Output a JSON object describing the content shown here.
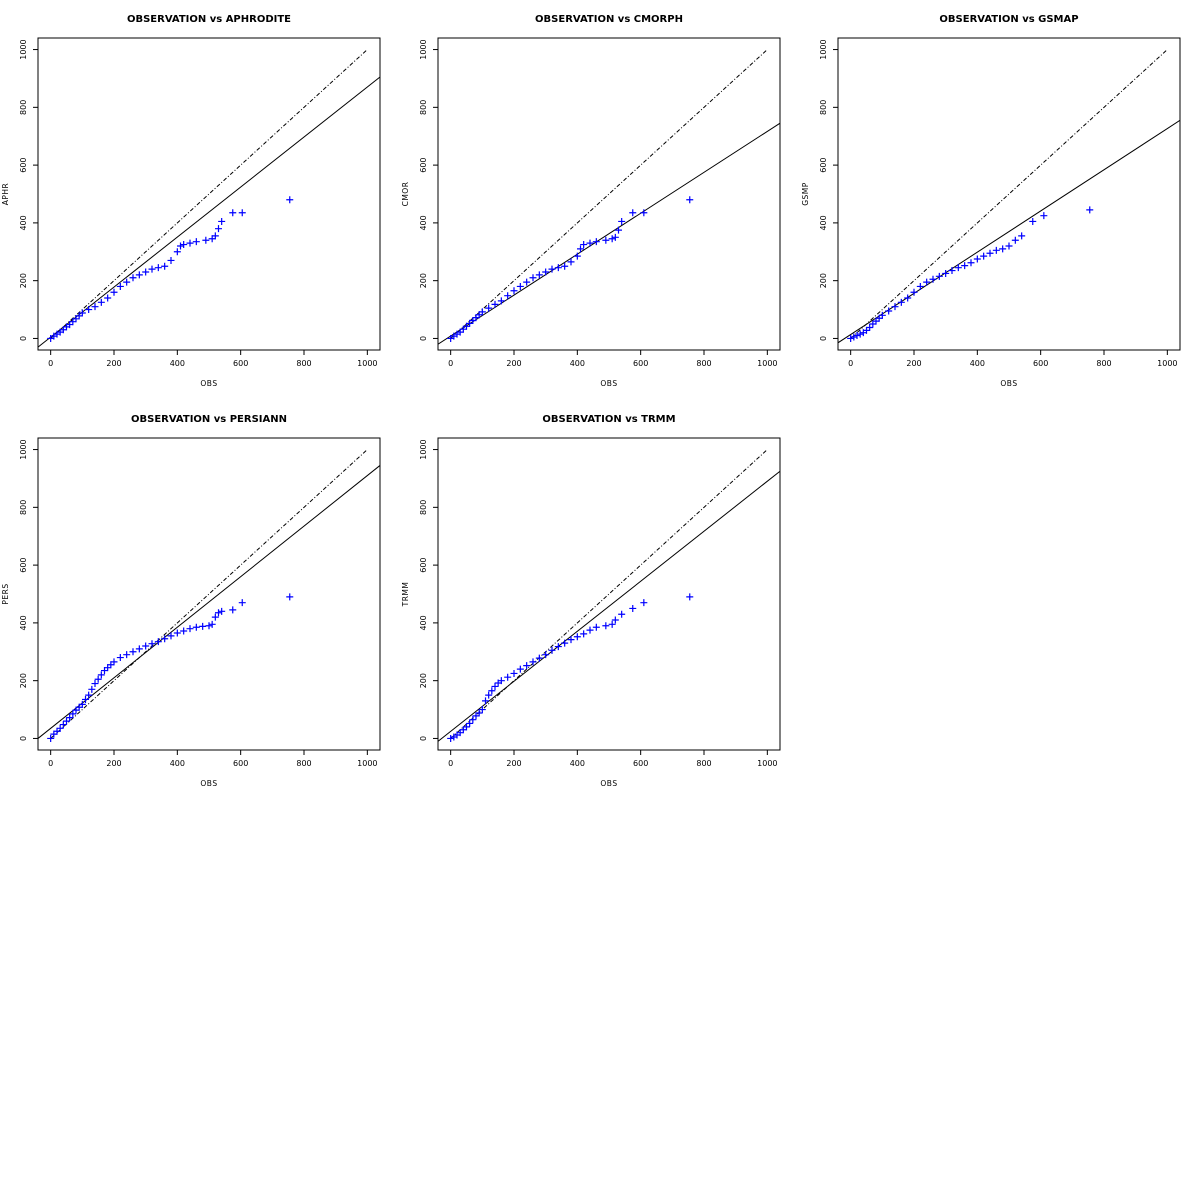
{
  "figure": {
    "colors": {
      "points": "#0000ff",
      "lines": "#000000",
      "background": "#ffffff"
    },
    "point_marker": "plus"
  },
  "chart_data": [
    {
      "type": "scatter",
      "title": "OBSERVATION vs APHRODITE",
      "xlabel": "OBS",
      "ylabel": "APHR",
      "xlim": [
        -40,
        1040
      ],
      "ylim": [
        -40,
        1040
      ],
      "xticks": [
        "0",
        "200",
        "400",
        "600",
        "800",
        "1000"
      ],
      "yticks": [
        "0",
        "200",
        "400",
        "600",
        "800",
        "1000"
      ],
      "grid": false,
      "reference_line": {
        "style": "dashed",
        "from": [
          0,
          0
        ],
        "to": [
          1000,
          1000
        ]
      },
      "fit_line": {
        "style": "solid",
        "from": [
          -40,
          -30
        ],
        "to": [
          1040,
          905
        ]
      },
      "x": [
        0,
        10,
        20,
        30,
        40,
        50,
        60,
        70,
        80,
        90,
        100,
        120,
        140,
        160,
        180,
        200,
        220,
        240,
        260,
        280,
        300,
        320,
        340,
        360,
        380,
        400,
        410,
        420,
        440,
        460,
        490,
        510,
        520,
        530,
        540,
        575,
        605,
        755
      ],
      "y": [
        0,
        8,
        15,
        22,
        30,
        40,
        48,
        58,
        68,
        78,
        88,
        100,
        110,
        125,
        140,
        160,
        180,
        195,
        210,
        220,
        230,
        240,
        245,
        250,
        270,
        300,
        320,
        325,
        330,
        335,
        340,
        345,
        355,
        380,
        405,
        435,
        435,
        480
      ]
    },
    {
      "type": "scatter",
      "title": "OBSERVATION vs CMORPH",
      "xlabel": "OBS",
      "ylabel": "CMOR",
      "xlim": [
        -40,
        1040
      ],
      "ylim": [
        -40,
        1040
      ],
      "xticks": [
        "0",
        "200",
        "400",
        "600",
        "800",
        "1000"
      ],
      "yticks": [
        "0",
        "200",
        "400",
        "600",
        "800",
        "1000"
      ],
      "grid": false,
      "reference_line": {
        "style": "dashed",
        "from": [
          0,
          0
        ],
        "to": [
          1000,
          1000
        ]
      },
      "fit_line": {
        "style": "solid",
        "from": [
          -40,
          -20
        ],
        "to": [
          1040,
          745
        ]
      },
      "x": [
        0,
        10,
        20,
        30,
        40,
        50,
        60,
        70,
        80,
        90,
        100,
        120,
        140,
        160,
        180,
        200,
        220,
        240,
        260,
        280,
        300,
        320,
        340,
        360,
        380,
        400,
        410,
        420,
        440,
        460,
        490,
        510,
        520,
        530,
        540,
        575,
        610,
        755
      ],
      "y": [
        0,
        8,
        15,
        22,
        32,
        42,
        52,
        62,
        72,
        82,
        92,
        105,
        118,
        130,
        148,
        165,
        180,
        195,
        210,
        220,
        230,
        240,
        245,
        250,
        265,
        285,
        310,
        325,
        330,
        335,
        340,
        345,
        350,
        375,
        405,
        435,
        435,
        480
      ]
    },
    {
      "type": "scatter",
      "title": "OBSERVATION vs GSMAP",
      "xlabel": "OBS",
      "ylabel": "GSMP",
      "xlim": [
        -40,
        1040
      ],
      "ylim": [
        -40,
        1040
      ],
      "xticks": [
        "0",
        "200",
        "400",
        "600",
        "800",
        "1000"
      ],
      "yticks": [
        "0",
        "200",
        "400",
        "600",
        "800",
        "1000"
      ],
      "grid": false,
      "reference_line": {
        "style": "dashed",
        "from": [
          0,
          0
        ],
        "to": [
          1000,
          1000
        ]
      },
      "fit_line": {
        "style": "solid",
        "from": [
          -40,
          -15
        ],
        "to": [
          1040,
          755
        ]
      },
      "x": [
        0,
        10,
        20,
        30,
        40,
        50,
        60,
        70,
        80,
        90,
        100,
        120,
        140,
        160,
        180,
        200,
        220,
        240,
        260,
        280,
        300,
        320,
        340,
        360,
        380,
        400,
        420,
        440,
        460,
        480,
        500,
        520,
        540,
        575,
        610,
        755
      ],
      "y": [
        0,
        5,
        10,
        15,
        20,
        28,
        38,
        50,
        60,
        70,
        80,
        95,
        110,
        125,
        140,
        160,
        180,
        195,
        205,
        215,
        225,
        235,
        245,
        252,
        262,
        275,
        285,
        295,
        305,
        310,
        320,
        340,
        355,
        405,
        425,
        445
      ]
    },
    {
      "type": "scatter",
      "title": "OBSERVATION vs PERSIANN",
      "xlabel": "OBS",
      "ylabel": "PERS",
      "xlim": [
        -40,
        1040
      ],
      "ylim": [
        -40,
        1040
      ],
      "xticks": [
        "0",
        "200",
        "400",
        "600",
        "800",
        "1000"
      ],
      "yticks": [
        "0",
        "200",
        "400",
        "600",
        "800",
        "1000"
      ],
      "grid": false,
      "reference_line": {
        "style": "dashed",
        "from": [
          0,
          0
        ],
        "to": [
          1000,
          1000
        ]
      },
      "fit_line": {
        "style": "solid",
        "from": [
          -40,
          0
        ],
        "to": [
          1040,
          945
        ]
      },
      "x": [
        0,
        10,
        20,
        30,
        40,
        50,
        60,
        70,
        80,
        90,
        100,
        110,
        120,
        130,
        140,
        150,
        160,
        170,
        180,
        190,
        200,
        220,
        240,
        260,
        280,
        300,
        320,
        340,
        360,
        380,
        400,
        420,
        440,
        460,
        480,
        500,
        510,
        520,
        530,
        540,
        575,
        605,
        755
      ],
      "y": [
        0,
        15,
        25,
        35,
        48,
        60,
        72,
        85,
        98,
        108,
        118,
        135,
        150,
        170,
        190,
        205,
        220,
        235,
        245,
        255,
        265,
        280,
        290,
        300,
        310,
        320,
        328,
        335,
        345,
        355,
        365,
        372,
        380,
        385,
        388,
        390,
        395,
        420,
        435,
        440,
        445,
        470,
        490
      ]
    },
    {
      "type": "scatter",
      "title": "OBSERVATION vs TRMM",
      "xlabel": "OBS",
      "ylabel": "TRMM",
      "xlim": [
        -40,
        1040
      ],
      "ylim": [
        -40,
        1040
      ],
      "xticks": [
        "0",
        "200",
        "400",
        "600",
        "800",
        "1000"
      ],
      "yticks": [
        "0",
        "200",
        "400",
        "600",
        "800",
        "1000"
      ],
      "grid": false,
      "reference_line": {
        "style": "dashed",
        "from": [
          0,
          0
        ],
        "to": [
          1000,
          1000
        ]
      },
      "fit_line": {
        "style": "solid",
        "from": [
          -40,
          -10
        ],
        "to": [
          1040,
          925
        ]
      },
      "x": [
        0,
        10,
        20,
        30,
        40,
        50,
        60,
        70,
        80,
        90,
        100,
        110,
        120,
        130,
        140,
        150,
        160,
        180,
        200,
        220,
        240,
        260,
        280,
        300,
        320,
        340,
        360,
        380,
        400,
        420,
        440,
        460,
        490,
        510,
        520,
        540,
        575,
        610,
        755
      ],
      "y": [
        0,
        5,
        12,
        20,
        30,
        40,
        52,
        65,
        78,
        88,
        100,
        130,
        150,
        165,
        180,
        192,
        200,
        212,
        225,
        240,
        252,
        265,
        278,
        290,
        305,
        318,
        330,
        342,
        352,
        362,
        375,
        385,
        390,
        395,
        410,
        430,
        450,
        470,
        490
      ]
    }
  ]
}
